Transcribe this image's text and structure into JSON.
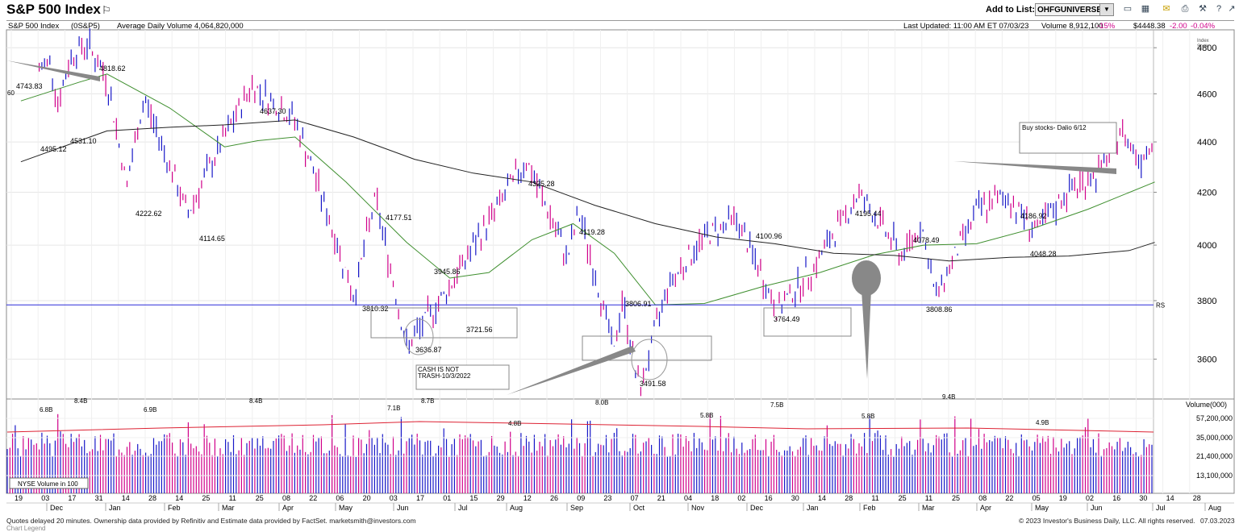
{
  "header": {
    "title": "S&P 500 Index",
    "add_to_list_label": "Add to List:",
    "list_value": "OHFGUNIVERSE",
    "toolbar_icons": [
      "chart-icon",
      "grid-icon",
      "email-icon",
      "print-icon",
      "tools-icon",
      "help-icon",
      "popout-icon"
    ]
  },
  "infobar": {
    "symbol": "S&P 500 Index",
    "exchange": "(0S&P5)",
    "avg_volume": "Average Daily Volume 4,064,820,000",
    "last_updated": "Last Updated: 11:00 AM ET 07/03/23",
    "volume": "Volume 8,912,100",
    "volume_pct": "-15%",
    "price": "$4448.38",
    "change": "-2.00",
    "change_pct": "-0.04%",
    "index_scale": [
      "Index",
      "Scale"
    ]
  },
  "footer": {
    "left": "Quotes delayed 20 minutes. Ownership data provided by Refinitiv and Estimate data provided by FactSet. marketsmith@investors.com",
    "right": "© 2023 Investor's Business Daily, LLC. All rights reserved.",
    "date": "07.03.2023",
    "sub": "Chart Legend"
  },
  "chart_data": {
    "type": "bar",
    "subtype": "ohlc-daily-price-and-volume",
    "price_axis": {
      "ticks": [
        3600,
        3800,
        4000,
        4200,
        4400,
        4600,
        4800
      ],
      "range": [
        3470,
        4880
      ],
      "scale": "log"
    },
    "volume_axis": {
      "label": "Volume(000)",
      "ticks": [
        "57,200,000",
        "35,000,000",
        "21,400,000",
        "13,100,000"
      ]
    },
    "x_day_labels": [
      "19",
      "03",
      "17",
      "31",
      "14",
      "28",
      "14",
      "25",
      "11",
      "25",
      "08",
      "22",
      "06",
      "20",
      "03",
      "17",
      "01",
      "15",
      "29",
      "12",
      "26",
      "09",
      "23",
      "07",
      "21",
      "04",
      "18",
      "02",
      "16",
      "30",
      "14",
      "28",
      "11",
      "25",
      "11",
      "25",
      "08",
      "22",
      "05",
      "19",
      "02",
      "16",
      "30",
      "14",
      "28"
    ],
    "x_month_labels": [
      "Dec",
      "Jan",
      "Feb",
      "Mar",
      "Apr",
      "May",
      "Jun",
      "Jul",
      "Aug",
      "Sep",
      "Oct",
      "Nov",
      "Dec",
      "Jan",
      "Feb",
      "Mar",
      "Apr",
      "May",
      "Jun",
      "Jul",
      "Aug"
    ],
    "price_labels": [
      "4743.83",
      "4818.62",
      "4495.12",
      "4531.10",
      "4222.62",
      "4114.65",
      "4637.30",
      "4177.51",
      "3810.32",
      "3636.87",
      "3945.86",
      "3721.56",
      "4325.28",
      "4119.28",
      "3806.91",
      "3491.58",
      "4100.96",
      "3764.49",
      "4195.44",
      "4078.49",
      "3808.86",
      "4186.92",
      "4048.28"
    ],
    "price_label_left_cut": "60",
    "price_points": [
      [
        "2021-12-10",
        4700
      ],
      [
        "2021-12-16",
        4743.83
      ],
      [
        "2021-12-20",
        4560
      ],
      [
        "2021-12-27",
        4770
      ],
      [
        "2022-01-04",
        4818.62
      ],
      [
        "2022-01-14",
        4660
      ],
      [
        "2022-01-24",
        4222.62
      ],
      [
        "2022-02-02",
        4580
      ],
      [
        "2022-02-24",
        4114.65
      ],
      [
        "2022-03-29",
        4637.3
      ],
      [
        "2022-04-20",
        4490
      ],
      [
        "2022-05-20",
        3810.32
      ],
      [
        "2022-05-31",
        4177.51
      ],
      [
        "2022-06-16",
        3636.87
      ],
      [
        "2022-07-08",
        3850
      ],
      [
        "2022-07-28",
        4090
      ],
      [
        "2022-08-16",
        4325.28
      ],
      [
        "2022-09-06",
        3950
      ],
      [
        "2022-09-12",
        4119.28
      ],
      [
        "2022-09-30",
        3620
      ],
      [
        "2022-10-04",
        3806.91
      ],
      [
        "2022-10-13",
        3491.58
      ],
      [
        "2022-10-27",
        3850
      ],
      [
        "2022-11-15",
        4030
      ],
      [
        "2022-12-01",
        4100.96
      ],
      [
        "2022-12-22",
        3764.49
      ],
      [
        "2023-01-10",
        3920
      ],
      [
        "2023-02-02",
        4195.44
      ],
      [
        "2023-02-24",
        3960
      ],
      [
        "2023-03-06",
        4078.49
      ],
      [
        "2023-03-13",
        3808.86
      ],
      [
        "2023-04-03",
        4130
      ],
      [
        "2023-04-18",
        4186.92
      ],
      [
        "2023-05-04",
        4048.28
      ],
      [
        "2023-05-19",
        4200
      ],
      [
        "2023-06-05",
        4280
      ],
      [
        "2023-06-15",
        4448
      ],
      [
        "2023-06-26",
        4330
      ],
      [
        "2023-07-03",
        4448.38
      ]
    ],
    "ma_50": [
      [
        "2021-12-01",
        4570
      ],
      [
        "2021-12-31",
        4650
      ],
      [
        "2022-01-14",
        4685
      ],
      [
        "2022-02-15",
        4540
      ],
      [
        "2022-03-15",
        4380
      ],
      [
        "2022-04-01",
        4405
      ],
      [
        "2022-04-20",
        4420
      ],
      [
        "2022-05-16",
        4240
      ],
      [
        "2022-06-16",
        4010
      ],
      [
        "2022-07-08",
        3880
      ],
      [
        "2022-07-28",
        3900
      ],
      [
        "2022-08-19",
        4020
      ],
      [
        "2022-09-09",
        4080
      ],
      [
        "2022-09-30",
        3970
      ],
      [
        "2022-10-21",
        3785
      ],
      [
        "2022-11-15",
        3790
      ],
      [
        "2022-12-15",
        3850
      ],
      [
        "2023-01-13",
        3900
      ],
      [
        "2023-02-10",
        3965
      ],
      [
        "2023-03-07",
        4000
      ],
      [
        "2023-04-03",
        4005
      ],
      [
        "2023-05-01",
        4060
      ],
      [
        "2023-05-30",
        4135
      ],
      [
        "2023-07-03",
        4240
      ]
    ],
    "ma_200": [
      [
        "2021-12-01",
        4320
      ],
      [
        "2022-01-14",
        4445
      ],
      [
        "2022-02-15",
        4460
      ],
      [
        "2022-03-15",
        4470
      ],
      [
        "2022-04-20",
        4490
      ],
      [
        "2022-05-20",
        4420
      ],
      [
        "2022-06-20",
        4330
      ],
      [
        "2022-07-20",
        4275
      ],
      [
        "2022-08-19",
        4240
      ],
      [
        "2022-09-20",
        4150
      ],
      [
        "2022-10-21",
        4080
      ],
      [
        "2022-11-21",
        4030
      ],
      [
        "2022-12-21",
        4005
      ],
      [
        "2023-01-20",
        3970
      ],
      [
        "2023-02-20",
        3962
      ],
      [
        "2023-03-20",
        3942
      ],
      [
        "2023-04-20",
        3955
      ],
      [
        "2023-05-20",
        3960
      ],
      [
        "2023-06-20",
        3980
      ],
      [
        "2023-07-03",
        4010
      ]
    ],
    "support_line": 3785,
    "support_label": "RS",
    "annotations": [
      "Buy stocks- Dalio 6/12",
      "CASH IS NOT TRASH-10/3/2022"
    ],
    "volume_labels": [
      "6.8B",
      "8.4B",
      "6.9B",
      "8.4B",
      "7.1B",
      "8.7B",
      "4.8B",
      "8.0B",
      "5.8B",
      "7.5B",
      "5.8B",
      "9.4B",
      "4.9B"
    ],
    "volume_legend": "NYSE Volume in 100"
  }
}
